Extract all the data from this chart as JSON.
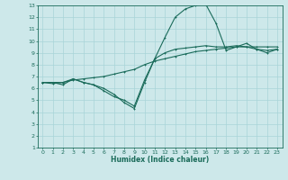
{
  "xlabel": "Humidex (Indice chaleur)",
  "background_color": "#cde8ea",
  "grid_color": "#a8d4d8",
  "line_color": "#1a6b5a",
  "xlim": [
    -0.5,
    23.5
  ],
  "ylim": [
    1,
    13
  ],
  "xticks": [
    0,
    1,
    2,
    3,
    4,
    5,
    6,
    7,
    8,
    9,
    10,
    11,
    12,
    13,
    14,
    15,
    16,
    17,
    18,
    19,
    20,
    21,
    22,
    23
  ],
  "yticks": [
    1,
    2,
    3,
    4,
    5,
    6,
    7,
    8,
    9,
    10,
    11,
    12,
    13
  ],
  "line1_x": [
    0,
    1,
    2,
    3,
    4,
    5,
    6,
    7,
    8,
    9,
    10,
    11,
    12,
    13,
    14,
    15,
    16,
    17,
    18,
    19,
    20,
    21,
    22,
    23
  ],
  "line1_y": [
    6.5,
    6.5,
    6.5,
    6.7,
    6.8,
    6.9,
    7.0,
    7.2,
    7.4,
    7.6,
    8.0,
    8.3,
    8.5,
    8.7,
    8.9,
    9.1,
    9.2,
    9.3,
    9.4,
    9.5,
    9.5,
    9.5,
    9.5,
    9.5
  ],
  "line2_x": [
    0,
    1,
    2,
    3,
    4,
    5,
    6,
    7,
    8,
    9,
    10,
    11,
    12,
    13,
    14,
    15,
    16,
    17,
    18,
    19,
    20,
    21,
    22,
    23
  ],
  "line2_y": [
    6.5,
    6.4,
    6.5,
    6.8,
    6.5,
    6.3,
    6.0,
    5.5,
    4.8,
    4.3,
    6.5,
    8.5,
    10.3,
    12.0,
    12.7,
    13.0,
    13.1,
    11.5,
    9.2,
    9.5,
    9.8,
    9.3,
    9.0,
    9.3
  ],
  "line3_x": [
    0,
    1,
    2,
    3,
    4,
    5,
    6,
    7,
    8,
    9,
    10,
    11,
    12,
    13,
    14,
    15,
    16,
    17,
    18,
    19,
    20,
    21,
    22,
    23
  ],
  "line3_y": [
    6.5,
    6.5,
    6.3,
    6.8,
    6.5,
    6.3,
    5.8,
    5.3,
    5.0,
    4.5,
    6.7,
    8.5,
    9.0,
    9.3,
    9.4,
    9.5,
    9.6,
    9.5,
    9.5,
    9.6,
    9.5,
    9.3,
    9.2,
    9.3
  ]
}
